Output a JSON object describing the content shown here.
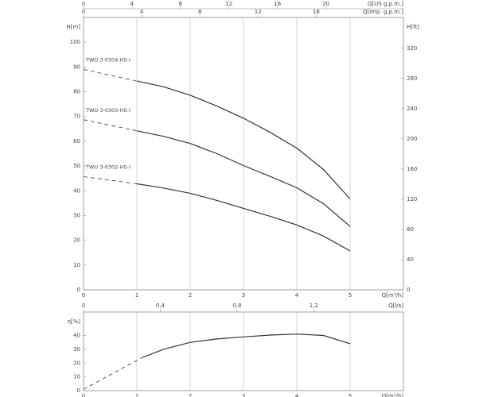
{
  "chart_data": [
    {
      "type": "line",
      "xlabel": "Q[m³/h]",
      "xlim": [
        0,
        6
      ],
      "xticks": [
        0,
        1,
        2,
        3,
        4,
        5
      ],
      "x2label": "Q[US g.p.m.]",
      "x2lim": [
        0,
        26.4
      ],
      "x2ticks": [
        0,
        4,
        8,
        12,
        16,
        20
      ],
      "x3label": "Q[Imp. g.p.m.]",
      "x3lim": [
        0,
        22
      ],
      "x3ticks": [
        0,
        4,
        8,
        12,
        16
      ],
      "ylabel": "H[m]",
      "ylim": [
        0,
        110
      ],
      "yticks": [
        0,
        10,
        20,
        30,
        40,
        50,
        60,
        70,
        80,
        90,
        100
      ],
      "y2label": "H[ft]",
      "y2lim": [
        0,
        360.9
      ],
      "y2ticks": [
        0,
        40,
        80,
        120,
        160,
        200,
        240,
        280,
        320
      ],
      "grid": true,
      "series": [
        {
          "name": "TWU 3-0304-HS-I",
          "color": "#333333",
          "line_style": "dashed",
          "x": [
            0,
            1
          ],
          "values": [
            89,
            84.3
          ]
        },
        {
          "color": "#333333",
          "line_style": "solid",
          "x": [
            1,
            1.5,
            2,
            2.5,
            3,
            3.5,
            4,
            4.5,
            5
          ],
          "values": [
            84.3,
            82,
            78.6,
            74.2,
            69.3,
            63.6,
            57.2,
            48.6,
            36.7
          ]
        },
        {
          "name": "TWU 3-0303-HS-I",
          "color": "#333333",
          "line_style": "dashed",
          "x": [
            0,
            1
          ],
          "values": [
            68.7,
            64.2
          ]
        },
        {
          "color": "#333333",
          "line_style": "solid",
          "x": [
            1,
            1.5,
            2,
            2.5,
            3,
            3.5,
            4,
            4.5,
            5
          ],
          "values": [
            64.2,
            62,
            59.1,
            55,
            50.2,
            45.8,
            41.2,
            34.8,
            25.6
          ]
        },
        {
          "name": "TWU 3-0302-HS-I",
          "color": "#333333",
          "line_style": "dashed",
          "x": [
            0,
            1
          ],
          "values": [
            45.7,
            42.8
          ]
        },
        {
          "color": "#333333",
          "line_style": "solid",
          "x": [
            1,
            1.5,
            2,
            2.5,
            3,
            3.5,
            4,
            4.5,
            5
          ],
          "values": [
            42.8,
            41.1,
            39,
            36.1,
            32.9,
            29.7,
            26.2,
            21.7,
            15.7
          ]
        }
      ]
    },
    {
      "type": "line",
      "xlabel": "Q[m³/h]",
      "xlim": [
        0,
        6
      ],
      "xticks": [
        0,
        1,
        2,
        3,
        4,
        5
      ],
      "x2label": "Q[l/s]",
      "x2lim": [
        0,
        1.667
      ],
      "x2ticks": [
        0,
        {
          "value": 0.4,
          "label": "0,4"
        },
        {
          "value": 0.8,
          "label": "0,8"
        },
        {
          "value": 1.2,
          "label": "1,2"
        }
      ],
      "ylabel": "η[%]",
      "ylim": [
        0,
        57
      ],
      "yticks": [
        0,
        10,
        20,
        30,
        40
      ],
      "grid": true,
      "series": [
        {
          "color": "#333333",
          "line_style": "dashed",
          "x": [
            0,
            1.1
          ],
          "values": [
            1,
            24
          ]
        },
        {
          "color": "#333333",
          "line_style": "solid",
          "x": [
            1.1,
            1.5,
            2,
            2.5,
            3,
            3.5,
            4,
            4.5,
            5
          ],
          "values": [
            24,
            30,
            35,
            37.5,
            39,
            40.3,
            41,
            40,
            34
          ]
        }
      ]
    }
  ]
}
